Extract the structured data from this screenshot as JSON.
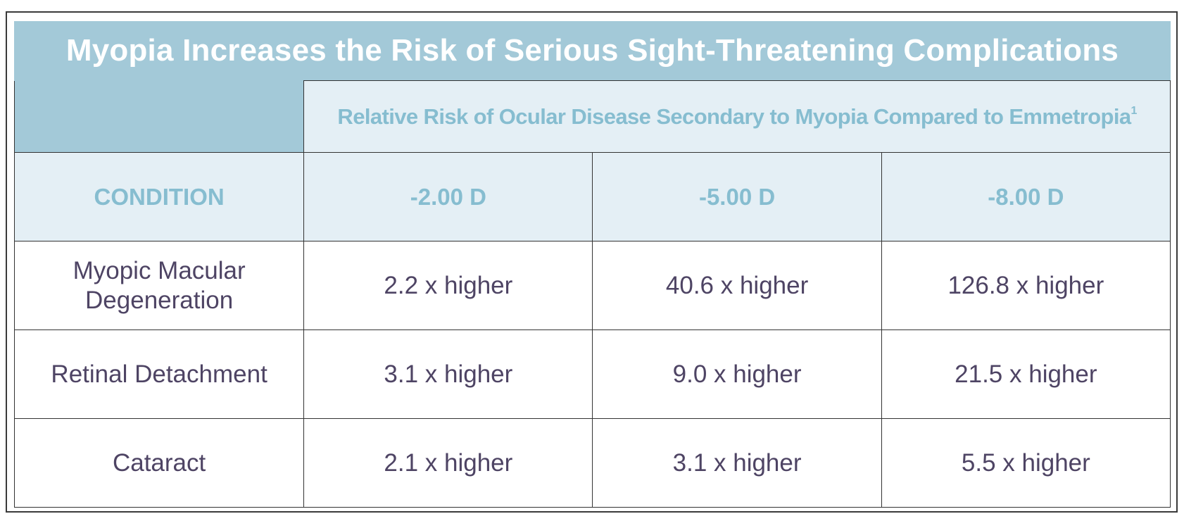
{
  "title": "Myopia Increases the Risk of Serious Sight-Threatening Complications",
  "subheader": {
    "text": "Relative Risk of Ocular Disease Secondary to Myopia Compared to Emmetropia",
    "footnote": "1"
  },
  "columns": [
    "CONDITION",
    "-2.00 D",
    "-5.00 D",
    "-8.00 D"
  ],
  "rows": [
    {
      "condition": "Myopic Macular Degeneration",
      "values": [
        "2.2 x higher",
        "40.6 x higher",
        "126.8 x higher"
      ]
    },
    {
      "condition": "Retinal Detachment",
      "values": [
        "3.1 x higher",
        "9.0 x higher",
        "21.5 x higher"
      ]
    },
    {
      "condition": "Cataract",
      "values": [
        "2.1 x higher",
        "3.1 x higher",
        "5.5 x higher"
      ]
    }
  ],
  "colors": {
    "title_bg": "#a3c9d8",
    "header_bg": "#e4eff5",
    "header_text": "#86bdd0",
    "body_text": "#4e4464"
  }
}
